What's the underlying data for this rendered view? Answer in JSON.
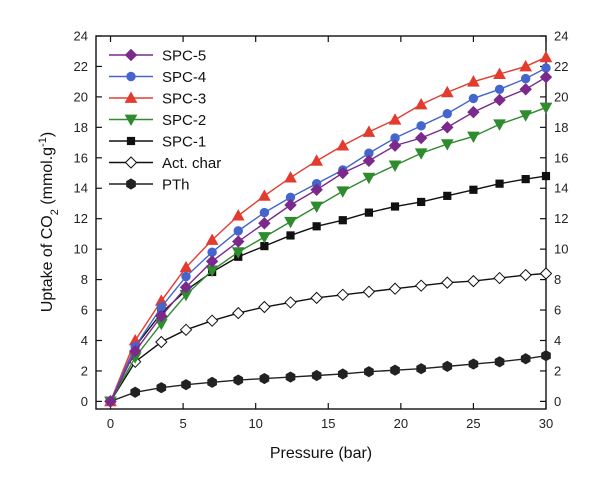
{
  "chart_data": {
    "type": "line",
    "xlabel": "Pressure (bar)",
    "ylabel": {
      "prefix": "Uptake of CO",
      "sub": "2",
      "mid": " (mmol.g",
      "sup": "-1",
      "suffix": ")"
    },
    "xlim": [
      -1,
      30
    ],
    "ylim": [
      -0.5,
      24
    ],
    "x_ticks": [
      0,
      5,
      10,
      15,
      20,
      25,
      30
    ],
    "y_ticks": [
      0,
      2,
      4,
      6,
      8,
      10,
      12,
      14,
      16,
      18,
      20,
      22,
      24
    ],
    "grid": false,
    "legend_position": "top-left",
    "series": [
      {
        "name": "SPC-5",
        "color": "#7b2a8c",
        "marker": "diamond-filled",
        "x": [
          0,
          1.7,
          3.5,
          5.2,
          7,
          8.8,
          10.6,
          12.4,
          14.2,
          16,
          17.8,
          19.6,
          21.4,
          23.2,
          25,
          26.8,
          28.6,
          30
        ],
        "y": [
          0,
          3.3,
          5.6,
          7.5,
          9.2,
          10.5,
          11.7,
          12.9,
          13.9,
          15.0,
          15.8,
          16.8,
          17.3,
          18.0,
          19.0,
          19.8,
          20.5,
          21.3
        ]
      },
      {
        "name": "SPC-4",
        "color": "#4466cc",
        "marker": "circle-filled",
        "x": [
          0,
          1.7,
          3.5,
          5.2,
          7,
          8.8,
          10.6,
          12.4,
          14.2,
          16,
          17.8,
          19.6,
          21.4,
          23.2,
          25,
          26.8,
          28.6,
          30
        ],
        "y": [
          0,
          3.6,
          6.2,
          8.2,
          9.8,
          11.2,
          12.4,
          13.4,
          14.3,
          15.2,
          16.3,
          17.3,
          18.1,
          18.9,
          19.9,
          20.5,
          21.2,
          21.9
        ]
      },
      {
        "name": "SPC-3",
        "color": "#e33b2e",
        "marker": "triangle-up-filled",
        "x": [
          0,
          1.7,
          3.5,
          5.2,
          7,
          8.8,
          10.6,
          12.4,
          14.2,
          16,
          17.8,
          19.6,
          21.4,
          23.2,
          25,
          26.8,
          28.6,
          30
        ],
        "y": [
          0,
          4.0,
          6.6,
          8.8,
          10.6,
          12.2,
          13.5,
          14.7,
          15.8,
          16.8,
          17.7,
          18.5,
          19.5,
          20.3,
          21.0,
          21.5,
          22.0,
          22.6
        ]
      },
      {
        "name": "SPC-2",
        "color": "#2e8b2e",
        "marker": "triangle-down-filled",
        "x": [
          0,
          1.7,
          3.5,
          5.2,
          7,
          8.8,
          10.6,
          12.4,
          14.2,
          16,
          17.8,
          19.6,
          21.4,
          23.2,
          25,
          26.8,
          28.6,
          30
        ],
        "y": [
          0,
          2.9,
          5.1,
          7.0,
          8.6,
          9.8,
          10.8,
          11.8,
          12.8,
          13.8,
          14.7,
          15.5,
          16.3,
          16.9,
          17.4,
          18.2,
          18.8,
          19.3
        ]
      },
      {
        "name": "SPC-1",
        "color": "#111111",
        "marker": "square-filled",
        "x": [
          0,
          1.7,
          3.5,
          5.2,
          7,
          8.8,
          10.6,
          12.4,
          14.2,
          16,
          17.8,
          19.6,
          21.4,
          23.2,
          25,
          26.8,
          28.6,
          30
        ],
        "y": [
          0,
          3.6,
          5.8,
          7.3,
          8.5,
          9.5,
          10.2,
          10.9,
          11.5,
          11.9,
          12.4,
          12.8,
          13.1,
          13.5,
          13.9,
          14.3,
          14.6,
          14.8
        ]
      },
      {
        "name": "Act. char",
        "color": "#111111",
        "marker": "diamond-open",
        "x": [
          0,
          1.7,
          3.5,
          5.2,
          7,
          8.8,
          10.6,
          12.4,
          14.2,
          16,
          17.8,
          19.6,
          21.4,
          23.2,
          25,
          26.8,
          28.6,
          30
        ],
        "y": [
          0,
          2.6,
          3.9,
          4.7,
          5.3,
          5.8,
          6.2,
          6.5,
          6.8,
          7.0,
          7.2,
          7.4,
          7.6,
          7.8,
          7.9,
          8.1,
          8.3,
          8.4
        ]
      },
      {
        "name": "PTh",
        "color": "#222222",
        "marker": "hexagon-filled",
        "x": [
          0,
          1.7,
          3.5,
          5.2,
          7,
          8.8,
          10.6,
          12.4,
          14.2,
          16,
          17.8,
          19.6,
          21.4,
          23.2,
          25,
          26.8,
          28.6,
          30
        ],
        "y": [
          0,
          0.6,
          0.9,
          1.1,
          1.25,
          1.4,
          1.5,
          1.6,
          1.7,
          1.8,
          1.95,
          2.05,
          2.15,
          2.3,
          2.45,
          2.6,
          2.8,
          3.0
        ]
      }
    ]
  }
}
